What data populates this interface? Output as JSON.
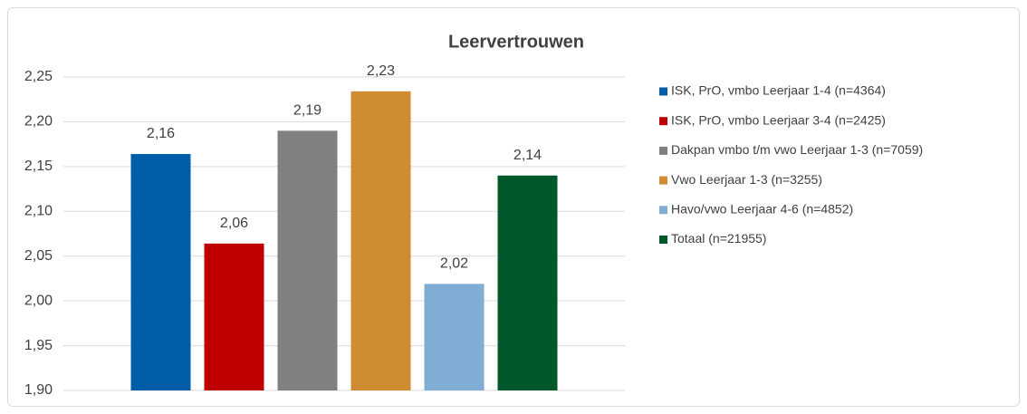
{
  "chart_data": {
    "type": "bar",
    "title": "Leervertrouwen",
    "series": [
      {
        "name": "ISK, PrO, vmbo Leerjaar 1-4 (n=4364)",
        "color": "#005ea8",
        "values": [
          2.164
        ],
        "value_labels": [
          "2,16"
        ]
      },
      {
        "name": "ISK, PrO, vmbo Leerjaar 3-4 (n=2425)",
        "color": "#c00000",
        "values": [
          2.064
        ],
        "value_labels": [
          "2,06"
        ]
      },
      {
        "name": "Dakpan vmbo t/m vwo Leerjaar 1-3 (n=7059)",
        "color": "#808080",
        "values": [
          2.19
        ],
        "value_labels": [
          "2,19"
        ]
      },
      {
        "name": "Vwo Leerjaar 1-3 (n=3255)",
        "color": "#d08c30",
        "values": [
          2.234
        ],
        "value_labels": [
          "2,23"
        ]
      },
      {
        "name": "Havo/vwo Leerjaar 4-6 (n=4852)",
        "color": "#7fadd3",
        "values": [
          2.019
        ],
        "value_labels": [
          "2,02"
        ]
      },
      {
        "name": "Totaal (n=21955)",
        "color": "#00582a",
        "values": [
          2.14
        ],
        "value_labels": [
          "2,14"
        ]
      }
    ],
    "ylim": [
      1.9,
      2.25
    ],
    "yticks": [
      {
        "value": 1.9,
        "label": "1,90"
      },
      {
        "value": 1.95,
        "label": "1,95"
      },
      {
        "value": 2.0,
        "label": "2,00"
      },
      {
        "value": 2.05,
        "label": "2,05"
      },
      {
        "value": 2.1,
        "label": "2,10"
      },
      {
        "value": 2.15,
        "label": "2,15"
      },
      {
        "value": 2.2,
        "label": "2,20"
      },
      {
        "value": 2.25,
        "label": "2,25"
      }
    ],
    "grid": true,
    "legend": "right"
  }
}
